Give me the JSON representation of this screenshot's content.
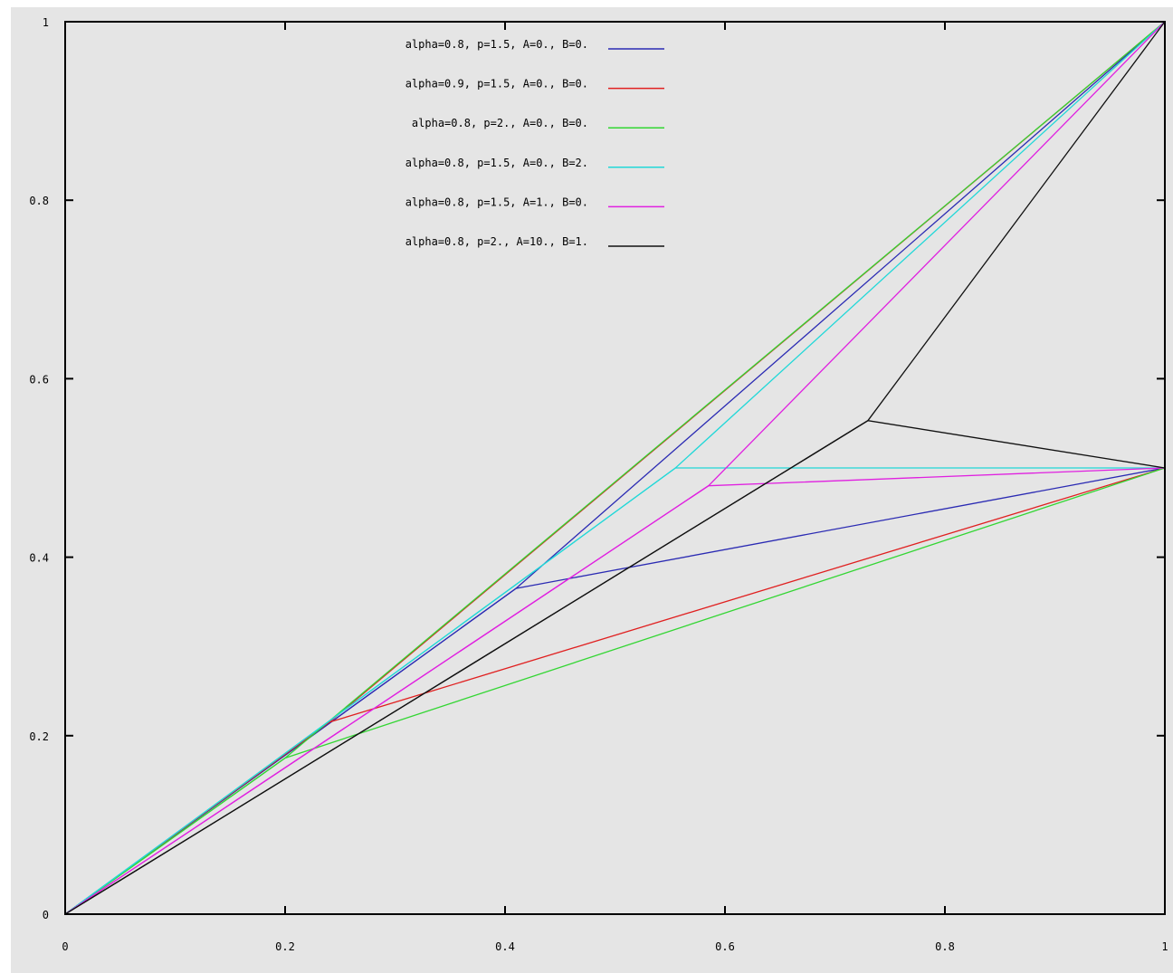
{
  "chart_data": {
    "type": "line",
    "title": "",
    "xlabel": "",
    "ylabel": "",
    "xlim": [
      0,
      1
    ],
    "ylim": [
      0,
      1
    ],
    "grid": false,
    "legend_position": "top-center",
    "background": "#e5e5e5",
    "x_ticks": [
      {
        "value": 0,
        "label": "0"
      },
      {
        "value": 0.2,
        "label": "0.2"
      },
      {
        "value": 0.4,
        "label": "0.4"
      },
      {
        "value": 0.6,
        "label": "0.6"
      },
      {
        "value": 0.8,
        "label": "0.8"
      },
      {
        "value": 1,
        "label": "1"
      }
    ],
    "y_ticks": [
      {
        "value": 0,
        "label": "0"
      },
      {
        "value": 0.2,
        "label": "0.2"
      },
      {
        "value": 0.4,
        "label": "0.4"
      },
      {
        "value": 0.6,
        "label": "0.6"
      },
      {
        "value": 0.8,
        "label": "0.8"
      },
      {
        "value": 1,
        "label": "1"
      }
    ],
    "series": [
      {
        "name": "alpha=0.8, p=1.5, A=0., B=0.",
        "color": "#2b2bb3",
        "lower": [
          [
            0,
            0
          ],
          [
            0.41,
            0.365
          ],
          [
            1,
            0.5
          ]
        ],
        "upper": [
          [
            0,
            0
          ],
          [
            0.41,
            0.365
          ],
          [
            1,
            1
          ]
        ]
      },
      {
        "name": "alpha=0.9, p=1.5, A=0., B=0.",
        "color": "#e02020",
        "lower": [
          [
            0,
            0
          ],
          [
            0.24,
            0.215
          ],
          [
            1,
            0.5
          ]
        ],
        "upper": [
          [
            0,
            0
          ],
          [
            0.24,
            0.215
          ],
          [
            1,
            1
          ]
        ]
      },
      {
        "name": "alpha=0.8, p=2., A=0., B=0.",
        "color": "#33d633",
        "lower": [
          [
            0,
            0
          ],
          [
            0.2,
            0.175
          ],
          [
            1,
            0.5
          ]
        ],
        "upper": [
          [
            0,
            0
          ],
          [
            0.2,
            0.175
          ],
          [
            1,
            1
          ]
        ]
      },
      {
        "name": "alpha=0.8, p=1.5, A=0., B=2.",
        "color": "#22d8d8",
        "lower": [
          [
            0,
            0
          ],
          [
            0.555,
            0.5
          ],
          [
            1,
            0.5
          ]
        ],
        "upper": [
          [
            0,
            0
          ],
          [
            0.555,
            0.5
          ],
          [
            1,
            1
          ]
        ]
      },
      {
        "name": "alpha=0.8, p=1.5, A=1., B=0.",
        "color": "#e020e0",
        "lower": [
          [
            0,
            0
          ],
          [
            0.585,
            0.48
          ],
          [
            1,
            0.5
          ]
        ],
        "upper": [
          [
            0,
            0
          ],
          [
            0.585,
            0.48
          ],
          [
            1,
            1
          ]
        ]
      },
      {
        "name": "alpha=0.8, p=2., A=10., B=1.",
        "color": "#111111",
        "lower": [
          [
            0,
            0
          ],
          [
            0.73,
            0.553
          ],
          [
            1,
            0.5
          ]
        ],
        "upper": [
          [
            0,
            0
          ],
          [
            0.73,
            0.553
          ],
          [
            1,
            1
          ]
        ]
      }
    ]
  }
}
